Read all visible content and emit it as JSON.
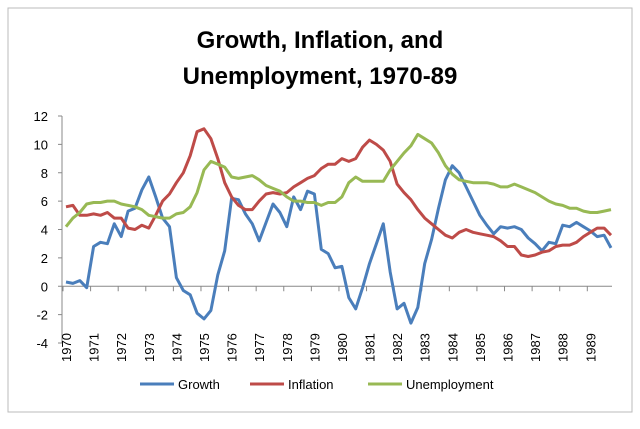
{
  "chart_data": {
    "type": "line",
    "title": [
      "Growth, Inflation, and",
      "Unemployment, 1970-89"
    ],
    "categories": [
      "1970",
      null,
      null,
      null,
      "1971",
      null,
      null,
      null,
      "1972",
      null,
      null,
      null,
      "1973",
      null,
      null,
      null,
      "1974",
      null,
      null,
      null,
      "1975",
      null,
      null,
      null,
      "1976",
      null,
      null,
      null,
      "1977",
      null,
      null,
      null,
      "1978",
      null,
      null,
      null,
      "1979",
      null,
      null,
      null,
      "1980",
      null,
      null,
      null,
      "1981",
      null,
      null,
      null,
      "1982",
      null,
      null,
      null,
      "1983",
      null,
      null,
      null,
      "1984",
      null,
      null,
      null,
      "1985",
      null,
      null,
      null,
      "1986",
      null,
      null,
      null,
      "1987",
      null,
      null,
      null,
      "1988",
      null,
      null,
      null,
      "1989",
      null,
      null,
      null
    ],
    "series": [
      {
        "name": "Growth",
        "color": "#4a7ebb",
        "values": [
          0.3,
          0.2,
          0.4,
          -0.1,
          2.8,
          3.1,
          3.0,
          4.4,
          3.5,
          5.3,
          5.5,
          6.8,
          7.7,
          6.3,
          4.8,
          4.2,
          0.6,
          -0.3,
          -0.6,
          -1.9,
          -2.3,
          -1.7,
          0.8,
          2.5,
          6.2,
          6.1,
          5.1,
          4.4,
          3.2,
          4.5,
          5.8,
          5.2,
          4.2,
          6.3,
          5.4,
          6.7,
          6.5,
          2.6,
          2.3,
          1.3,
          1.4,
          -0.8,
          -1.6,
          -0.1,
          1.6,
          3.0,
          4.4,
          1.0,
          -1.6,
          -1.2,
          -2.6,
          -1.5,
          1.6,
          3.3,
          5.5,
          7.5,
          8.5,
          8.0,
          7.0,
          6.0,
          5.0,
          4.3,
          3.7,
          4.2,
          4.1,
          4.2,
          4.0,
          3.4,
          3.0,
          2.5,
          3.1,
          3.0,
          4.3,
          4.2,
          4.5,
          4.2,
          3.9,
          3.5,
          3.6,
          2.7
        ]
      },
      {
        "name": "Inflation",
        "color": "#be4b48",
        "values": [
          5.6,
          5.7,
          5.0,
          5.0,
          5.1,
          5.0,
          5.2,
          4.8,
          4.8,
          4.1,
          4.0,
          4.3,
          4.1,
          5.0,
          6.0,
          6.5,
          7.3,
          8.0,
          9.2,
          10.9,
          11.1,
          10.4,
          9.0,
          7.3,
          6.3,
          5.7,
          5.4,
          5.4,
          6.0,
          6.5,
          6.6,
          6.5,
          6.6,
          7.0,
          7.3,
          7.6,
          7.8,
          8.3,
          8.6,
          8.6,
          9.0,
          8.8,
          9.0,
          9.8,
          10.3,
          10.0,
          9.6,
          8.8,
          7.2,
          6.6,
          6.1,
          5.4,
          4.8,
          4.4,
          4.0,
          3.6,
          3.4,
          3.8,
          4.0,
          3.8,
          3.7,
          3.6,
          3.5,
          3.2,
          2.8,
          2.8,
          2.2,
          2.1,
          2.2,
          2.4,
          2.5,
          2.8,
          2.9,
          2.9,
          3.1,
          3.5,
          3.8,
          4.1,
          4.1,
          3.6
        ]
      },
      {
        "name": "Unemployment",
        "color": "#98b954",
        "values": [
          4.2,
          4.8,
          5.2,
          5.8,
          5.9,
          5.9,
          6.0,
          6.0,
          5.8,
          5.7,
          5.6,
          5.4,
          5.0,
          4.9,
          4.8,
          4.8,
          5.1,
          5.2,
          5.6,
          6.6,
          8.2,
          8.8,
          8.6,
          8.4,
          7.7,
          7.6,
          7.7,
          7.8,
          7.5,
          7.1,
          6.9,
          6.7,
          6.3,
          6.0,
          6.0,
          5.9,
          5.9,
          5.7,
          5.9,
          5.9,
          6.3,
          7.3,
          7.7,
          7.4,
          7.4,
          7.4,
          7.4,
          8.2,
          8.8,
          9.4,
          9.9,
          10.7,
          10.4,
          10.1,
          9.4,
          8.5,
          7.9,
          7.5,
          7.4,
          7.3,
          7.3,
          7.3,
          7.2,
          7.0,
          7.0,
          7.2,
          7.0,
          6.8,
          6.6,
          6.3,
          6.0,
          5.8,
          5.7,
          5.5,
          5.5,
          5.3,
          5.2,
          5.2,
          5.3,
          5.4
        ]
      }
    ],
    "ylim": [
      -4,
      12
    ],
    "yticks": [
      -4,
      -2,
      0,
      2,
      4,
      6,
      8,
      10,
      12
    ],
    "grid": false,
    "legend": "bottom"
  }
}
